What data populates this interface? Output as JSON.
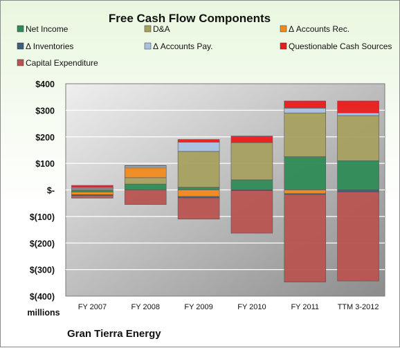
{
  "chart_data": {
    "type": "bar",
    "stacked": true,
    "title": "Free Cash Flow Components",
    "categories": [
      "FY 2007",
      "FY 2008",
      "FY 2009",
      "FY 2010",
      "FY 2011",
      "TTM 3-2012"
    ],
    "ylim": [
      -400,
      400
    ],
    "yticks": [
      400,
      300,
      200,
      100,
      0,
      -100,
      -200,
      -300,
      -400
    ],
    "ytick_labels": [
      "$400",
      "$300",
      "$200",
      "$100",
      "$-",
      "$(100)",
      "$(200)",
      "$(300)",
      "$(400)"
    ],
    "unit_label": "millions",
    "legend_position": "top",
    "grid": true,
    "series": [
      {
        "name": "Net Income",
        "color": "#2e8b57",
        "values": [
          -8,
          22,
          10,
          38,
          125,
          110
        ]
      },
      {
        "name": "D&A",
        "color": "#a6a060",
        "values": [
          5,
          24,
          135,
          140,
          165,
          170
        ]
      },
      {
        "name": "Δ Accounts Rec.",
        "color": "#f08a1c",
        "values": [
          -10,
          38,
          -25,
          0,
          -14,
          0
        ]
      },
      {
        "name": "Δ Inventories",
        "color": "#3a5f7a",
        "values": [
          -3,
          0,
          -5,
          -3,
          -3,
          -8
        ]
      },
      {
        "name": "Δ Accounts Pay.",
        "color": "#a9c1e1",
        "values": [
          4,
          6,
          35,
          0,
          18,
          10
        ]
      },
      {
        "name": "Questionable Cash Sources",
        "color": "#e81c1c",
        "values": [
          8,
          2,
          10,
          25,
          27,
          45
        ]
      },
      {
        "name": "Capital Expenditure",
        "color": "#b85450",
        "values": [
          -10,
          -55,
          -80,
          -160,
          -330,
          -335
        ]
      }
    ]
  },
  "company_label": "Gran Tierra Energy"
}
